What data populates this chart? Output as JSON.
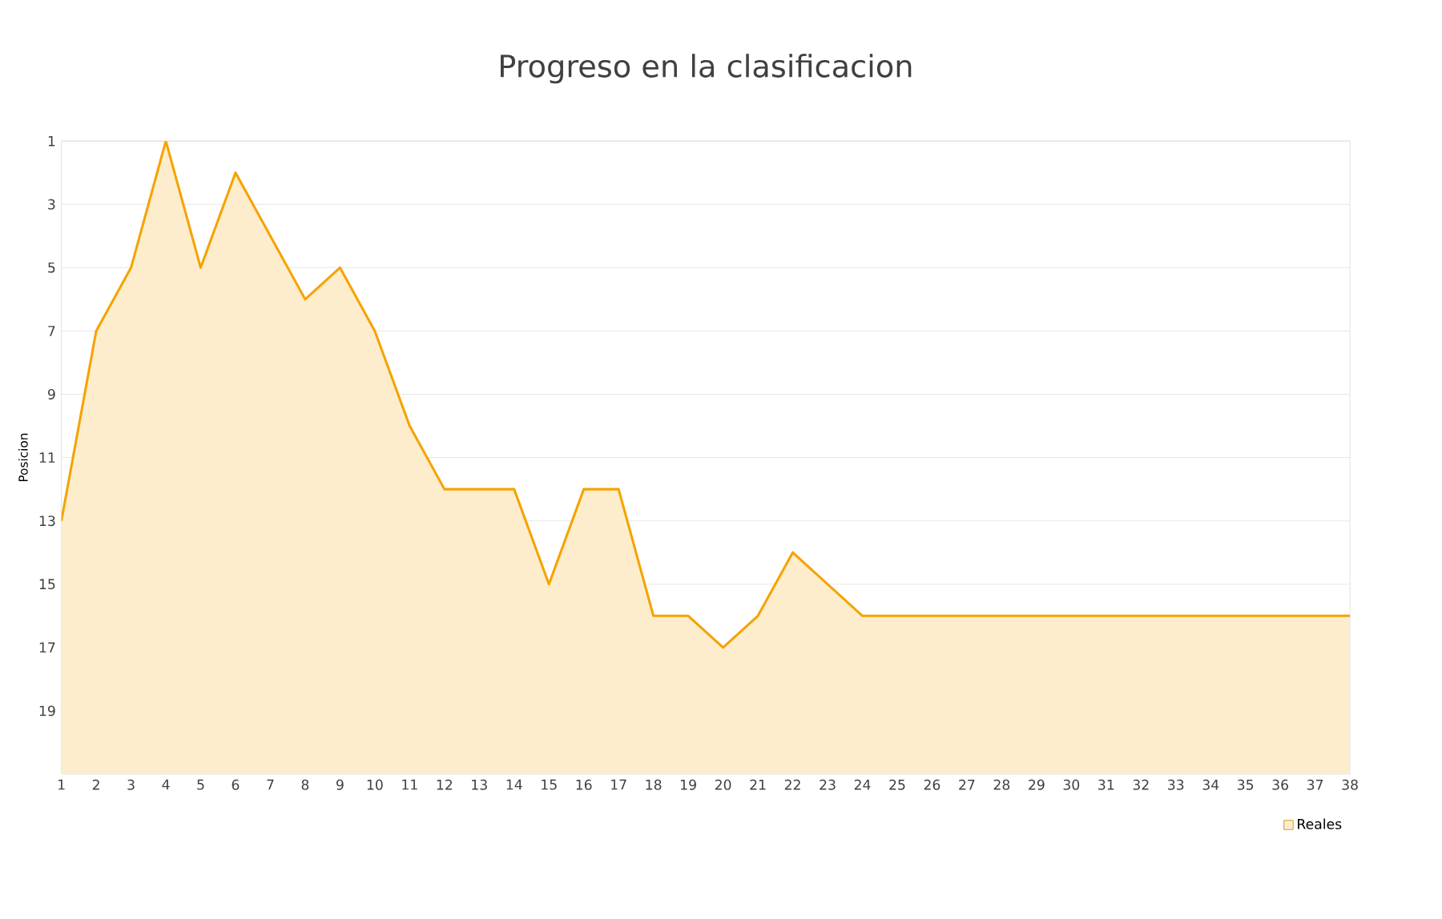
{
  "chart_data": {
    "type": "area",
    "title": "Progreso en la clasificacion",
    "ylabel": "Posicion",
    "x": [
      1,
      2,
      3,
      4,
      5,
      6,
      7,
      8,
      9,
      10,
      11,
      12,
      13,
      14,
      15,
      16,
      17,
      18,
      19,
      20,
      21,
      22,
      23,
      24,
      25,
      26,
      27,
      28,
      29,
      30,
      31,
      32,
      33,
      34,
      35,
      36,
      37,
      38
    ],
    "series": [
      {
        "name": "Reales",
        "color": "#f5a300",
        "values": [
          13,
          7,
          5,
          1,
          5,
          2,
          4,
          6,
          5,
          7,
          10,
          12,
          12,
          12,
          15,
          12,
          12,
          16,
          16,
          17,
          16,
          14,
          15,
          16,
          16,
          16,
          16,
          16,
          16,
          16,
          16,
          16,
          16,
          16,
          16,
          16,
          16,
          16
        ]
      }
    ],
    "xlim": [
      1,
      38
    ],
    "xticks": [
      1,
      2,
      3,
      4,
      5,
      6,
      7,
      8,
      9,
      10,
      11,
      12,
      13,
      14,
      15,
      16,
      17,
      18,
      19,
      20,
      21,
      22,
      23,
      24,
      25,
      26,
      27,
      28,
      29,
      30,
      31,
      32,
      33,
      34,
      35,
      36,
      37,
      38
    ],
    "ylim": [
      21,
      1
    ],
    "yticks": [
      1,
      3,
      5,
      7,
      9,
      11,
      13,
      15,
      17,
      19
    ],
    "grid": "y",
    "legend": "bottom right"
  }
}
